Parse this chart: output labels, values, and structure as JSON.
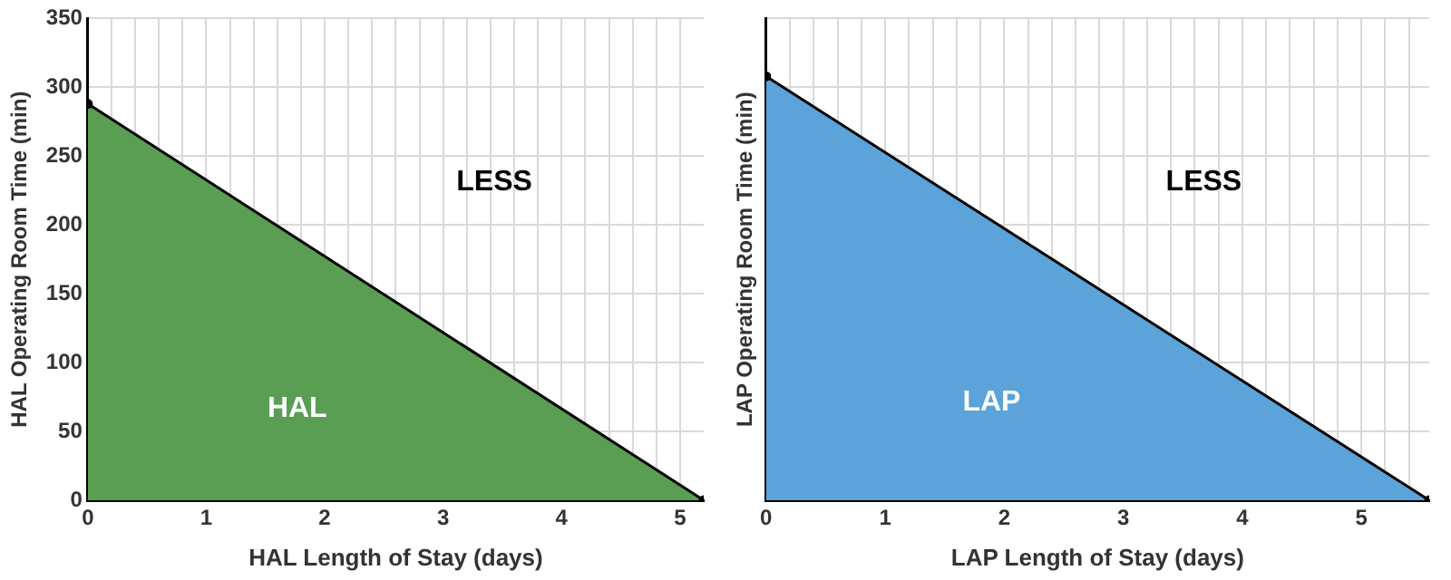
{
  "chart_data": [
    {
      "type": "area",
      "xlabel": "HAL Length of Stay (days)",
      "ylabel": "HAL Operating Room Time (min)",
      "series": [
        {
          "name": "HAL",
          "x": [
            0,
            5.2
          ],
          "values": [
            288,
            0
          ],
          "color": "#5a9e54"
        }
      ],
      "xlim": [
        0,
        5.2
      ],
      "ylim": [
        0,
        350
      ],
      "xticks": [
        0,
        {
          "value": 0.2,
          "label": null
        },
        {
          "value": 0.4,
          "label": null
        },
        {
          "value": 0.6,
          "label": null
        },
        {
          "value": 0.8,
          "label": null
        },
        1,
        {
          "value": 1.2,
          "label": null
        },
        {
          "value": 1.4,
          "label": null
        },
        {
          "value": 1.6,
          "label": null
        },
        {
          "value": 1.8,
          "label": null
        },
        2,
        {
          "value": 2.2,
          "label": null
        },
        {
          "value": 2.4,
          "label": null
        },
        {
          "value": 2.6,
          "label": null
        },
        {
          "value": 2.8,
          "label": null
        },
        3,
        {
          "value": 3.2,
          "label": null
        },
        {
          "value": 3.4,
          "label": null
        },
        {
          "value": 3.6,
          "label": null
        },
        {
          "value": 3.8,
          "label": null
        },
        4,
        {
          "value": 4.2,
          "label": null
        },
        {
          "value": 4.4,
          "label": null
        },
        {
          "value": 4.6,
          "label": null
        },
        {
          "value": 4.8,
          "label": null
        },
        5
      ],
      "yticks": [
        0,
        50,
        100,
        150,
        200,
        250,
        300,
        350
      ],
      "grid": true,
      "marker": "circle",
      "annotations": [
        "LESS"
      ]
    },
    {
      "type": "area",
      "xlabel": "LAP Length of Stay (days)",
      "ylabel": "LAP Operating Room Time (min)",
      "series": [
        {
          "name": "LAP",
          "x": [
            0,
            5.57
          ],
          "values": [
            308,
            0
          ],
          "color": "#5ba3d9"
        }
      ],
      "xlim": [
        0,
        5.57
      ],
      "ylim": [
        0,
        350
      ],
      "xticks": [
        0,
        {
          "value": 0.2,
          "label": null
        },
        {
          "value": 0.4,
          "label": null
        },
        {
          "value": 0.6,
          "label": null
        },
        {
          "value": 0.8,
          "label": null
        },
        1,
        {
          "value": 1.2,
          "label": null
        },
        {
          "value": 1.4,
          "label": null
        },
        {
          "value": 1.6,
          "label": null
        },
        {
          "value": 1.8,
          "label": null
        },
        2,
        {
          "value": 2.2,
          "label": null
        },
        {
          "value": 2.4,
          "label": null
        },
        {
          "value": 2.6,
          "label": null
        },
        {
          "value": 2.8,
          "label": null
        },
        3,
        {
          "value": 3.2,
          "label": null
        },
        {
          "value": 3.4,
          "label": null
        },
        {
          "value": 3.6,
          "label": null
        },
        {
          "value": 3.8,
          "label": null
        },
        4,
        {
          "value": 4.2,
          "label": null
        },
        {
          "value": 4.4,
          "label": null
        },
        {
          "value": 4.6,
          "label": null
        },
        {
          "value": 4.8,
          "label": null
        },
        5,
        {
          "value": 5.2,
          "label": null
        },
        {
          "value": 5.4,
          "label": null
        }
      ],
      "yticks": [
        0,
        50,
        100,
        150,
        200,
        250,
        300,
        350
      ],
      "tick_labels": "x",
      "grid": true,
      "marker": "circle",
      "annotations": [
        "LESS"
      ]
    }
  ]
}
